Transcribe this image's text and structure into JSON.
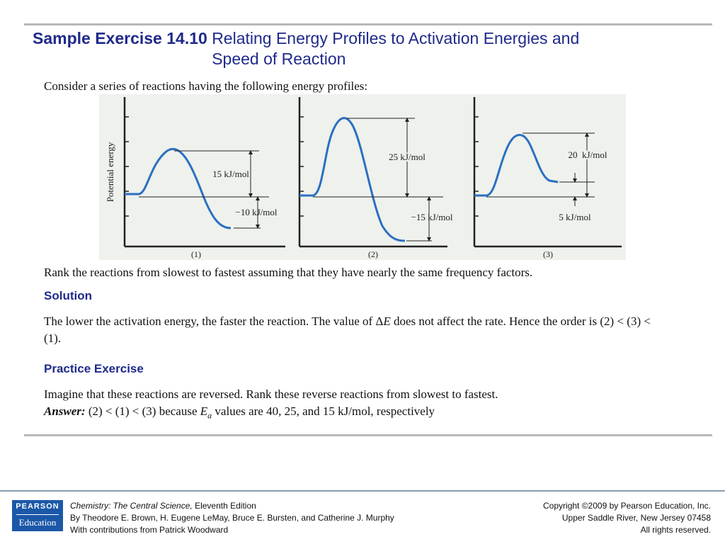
{
  "title": {
    "number": "Sample Exercise 14.10",
    "text": "Relating Energy Profiles to Activation Energies and Speed of Reaction"
  },
  "intro": "Consider a series of reactions having the following energy profiles:",
  "figure": {
    "ylabel": "Potential energy",
    "panels": [
      {
        "caption": "(1)",
        "ea_label": "15 kJ/mol",
        "dE_label": "−10 kJ/mol"
      },
      {
        "caption": "(2)",
        "ea_label": "25 kJ/mol",
        "dE_label": "−15 kJ/mol"
      },
      {
        "caption": "(3)",
        "ea_label": "20  kJ/mol",
        "dE_label": "5 kJ/mol"
      }
    ],
    "colors": {
      "curve": "#2b6fc2",
      "axis": "#222222",
      "background": "#eef1ec"
    }
  },
  "question": "Rank the reactions from slowest to fastest assuming that they have nearly the same frequency factors.",
  "solution": {
    "heading": "Solution",
    "text_part1": "The lower the activation energy, the faster the reaction. The value of Δ",
    "text_var": "E",
    "text_part2": " does not affect the rate. Hence the order is (2) < (3) < (1)."
  },
  "practice": {
    "heading": "Practice Exercise",
    "question": "Imagine that these reactions are reversed. Rank these reverse reactions from slowest to fastest.",
    "answer_label": "Answer:",
    "answer_text1": " (2) < (1) < (3) because ",
    "answer_var": "E",
    "answer_sub": "a",
    "answer_text2": " values are 40, 25, and 15 kJ/mol, respectively"
  },
  "footer": {
    "logo_top": "PEARSON",
    "logo_bottom": "Education",
    "book_title": "Chemistry: The Central Science,",
    "edition": " Eleventh Edition",
    "authors": "By Theodore E. Brown, H. Eugene LeMay, Bruce E. Bursten, and Catherine J. Murphy",
    "contributions": "With contributions from Patrick Woodward",
    "copyright": "Copyright ©2009 by Pearson Education, Inc.",
    "address": "Upper Saddle River, New Jersey 07458",
    "rights": "All rights reserved."
  }
}
